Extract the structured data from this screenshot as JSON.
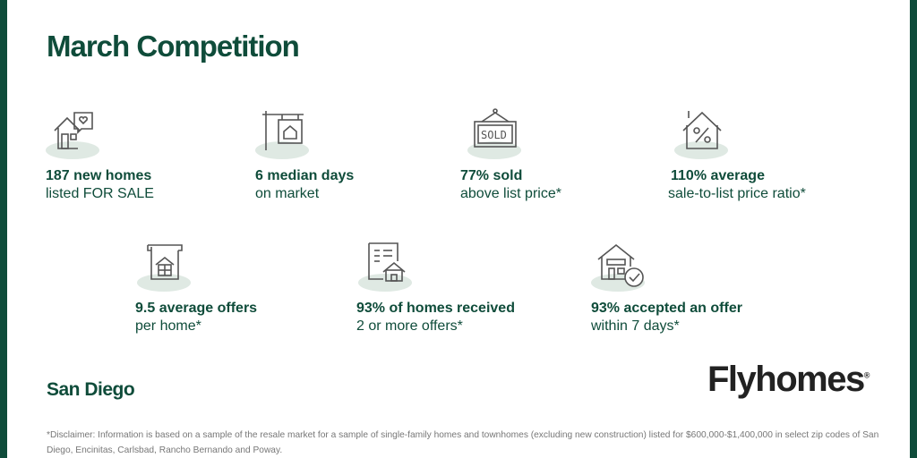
{
  "title": "March Competition",
  "region": "San Diego",
  "brand": {
    "name": "Flyhomes",
    "mark": "®"
  },
  "stats": [
    {
      "icon": "house-heart-icon",
      "big": "187 new homes",
      "small": "listed FOR SALE"
    },
    {
      "icon": "sign-post-icon",
      "big": "6 median days",
      "small": "on market"
    },
    {
      "icon": "sold-sign-icon",
      "big": "77% sold",
      "small": "above list price*"
    },
    {
      "icon": "house-percent-icon",
      "big": "110% average",
      "small": "sale-to-list price ratio*"
    },
    {
      "icon": "document-house-icon",
      "big": "9.5 average offers",
      "small": "per home*"
    },
    {
      "icon": "receipt-house-icon",
      "big": "93% of homes received",
      "small": "2 or more offers*"
    },
    {
      "icon": "house-check-icon",
      "big": "93% accepted an offer",
      "small": "within 7 days*"
    }
  ],
  "disclaimer": "*Disclaimer: Information is based on a sample of the resale market for a sample of single-family homes and townhomes (excluding new construction) listed for $600,000-$1,400,000 in select zip codes of San Diego, Encinitas, Carlsbad, Rancho Bernando and Poway.",
  "colors": {
    "accent": "#0f4c3a",
    "icon_stroke": "#555555",
    "icon_shadow": "#dfe9e3"
  }
}
